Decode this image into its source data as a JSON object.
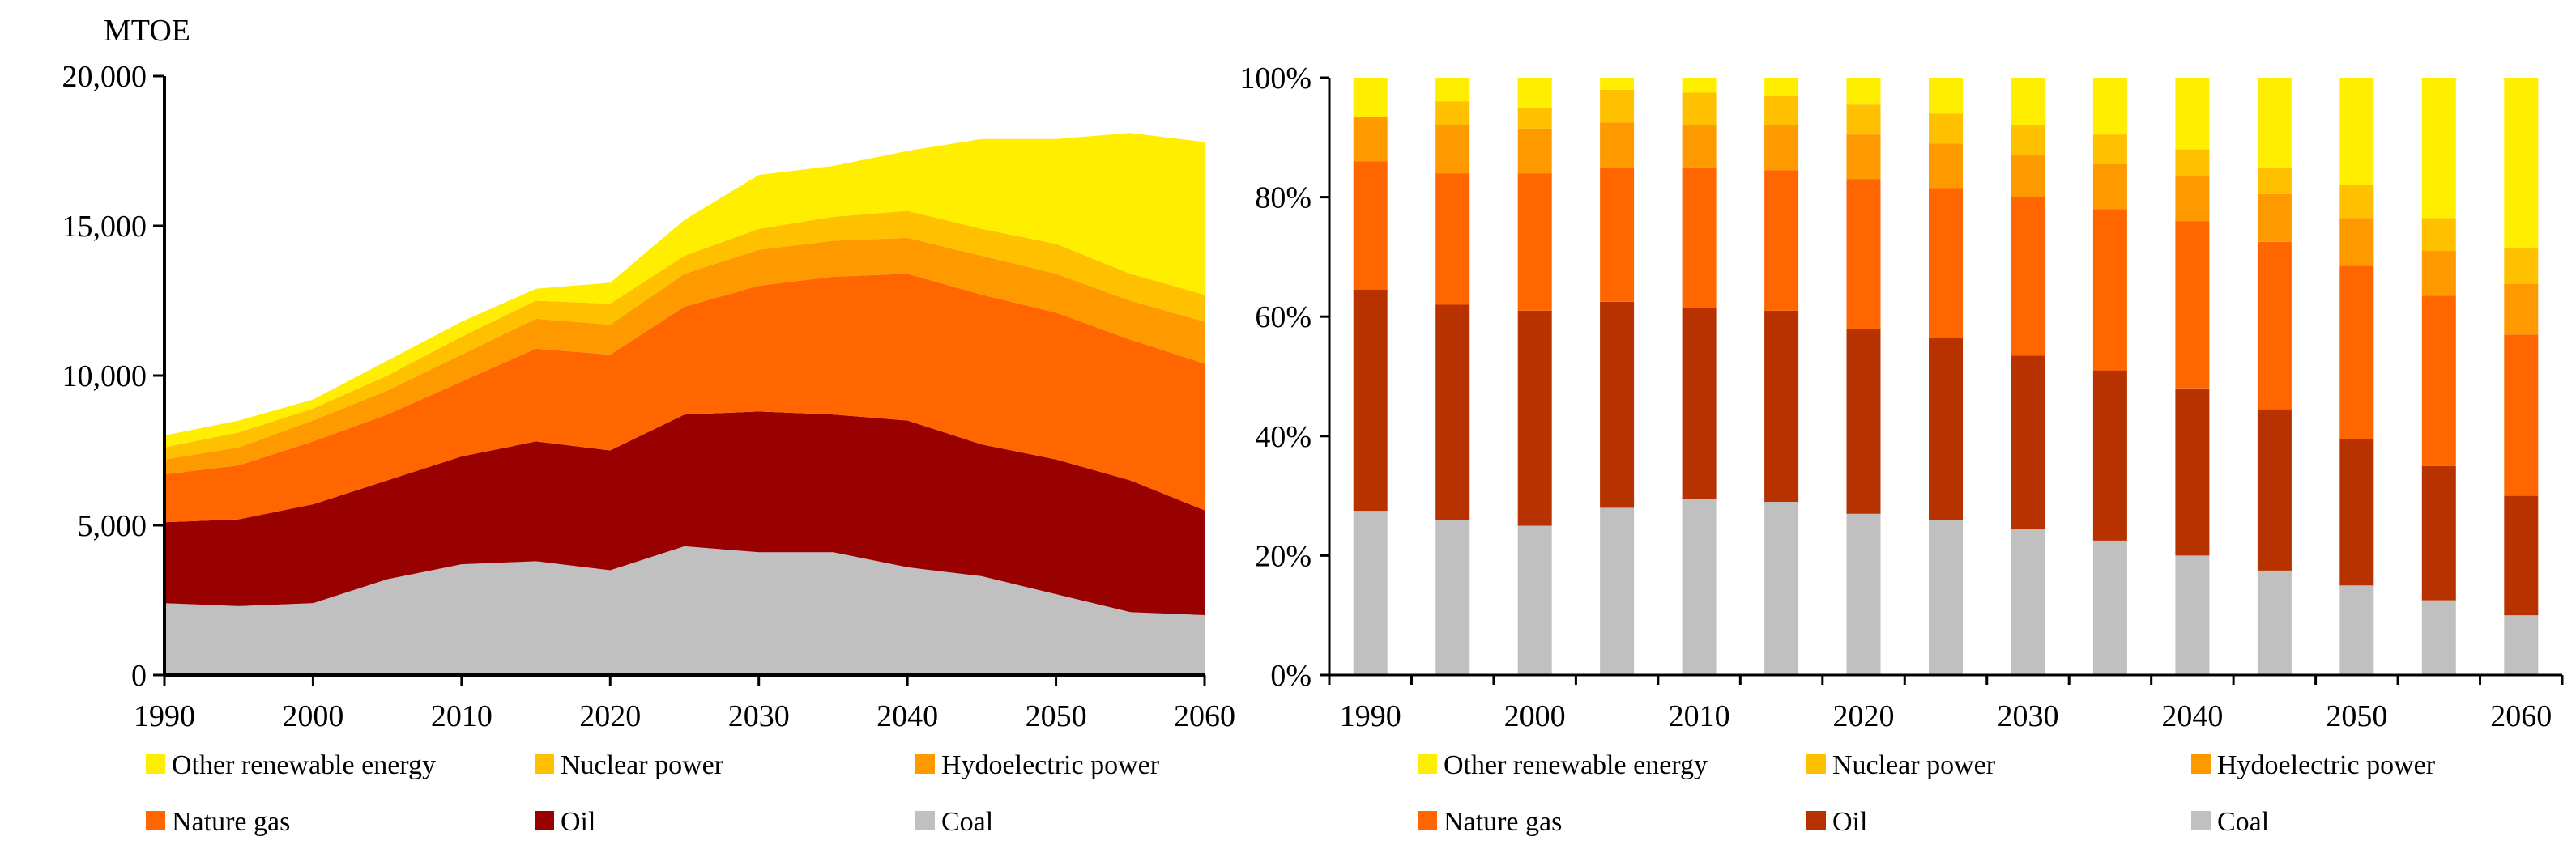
{
  "chart_data": [
    {
      "type": "area",
      "stacked": true,
      "unit_label": "MTOE",
      "x": [
        1990,
        1995,
        2000,
        2005,
        2010,
        2015,
        2020,
        2025,
        2030,
        2035,
        2040,
        2045,
        2050,
        2055,
        2060
      ],
      "x_ticks": [
        "1990",
        "2000",
        "2010",
        "2020",
        "2030",
        "2040",
        "2050",
        "2060"
      ],
      "x_tick_values": [
        1990,
        2000,
        2010,
        2020,
        2030,
        2040,
        2050,
        2060
      ],
      "xlim": [
        1990,
        2060
      ],
      "ylim": [
        0,
        20000
      ],
      "y_ticks": [
        "0",
        "5,000",
        "10,000",
        "15,000",
        "20,000"
      ],
      "y_tick_values": [
        0,
        5000,
        10000,
        15000,
        20000
      ],
      "series": [
        {
          "name": "Coal",
          "color": "#C0C0C0",
          "values": [
            2400,
            2300,
            2400,
            3200,
            3700,
            3800,
            3500,
            4300,
            4100,
            4100,
            3600,
            3300,
            2700,
            2100,
            2000
          ]
        },
        {
          "name": "Oil",
          "color": "#990000",
          "values": [
            2700,
            2900,
            3300,
            3300,
            3600,
            4000,
            4000,
            4400,
            4700,
            4600,
            4900,
            4400,
            4500,
            4400,
            3500
          ]
        },
        {
          "name": "Nature gas",
          "color": "#FF6600",
          "values": [
            1600,
            1800,
            2100,
            2200,
            2500,
            3100,
            3200,
            3600,
            4200,
            4600,
            4900,
            5000,
            4900,
            4700,
            4900
          ]
        },
        {
          "name": "Hydoelectric power",
          "color": "#FF9900",
          "values": [
            500,
            600,
            700,
            800,
            900,
            1000,
            1000,
            1100,
            1200,
            1200,
            1200,
            1300,
            1300,
            1300,
            1400
          ]
        },
        {
          "name": "Nuclear power",
          "color": "#FFC000",
          "values": [
            400,
            500,
            400,
            500,
            600,
            600,
            700,
            600,
            700,
            800,
            900,
            900,
            1000,
            900,
            900
          ]
        },
        {
          "name": "Other renewable energy",
          "color": "#FFEE00",
          "values": [
            400,
            400,
            300,
            500,
            500,
            400,
            700,
            1200,
            1800,
            1700,
            2000,
            3000,
            3500,
            4700,
            5100
          ]
        }
      ],
      "legend": [
        "Other renewable energy",
        "Nuclear power",
        "Hydoelectric power",
        "Nature gas",
        "Oil",
        "Coal"
      ]
    },
    {
      "type": "bar",
      "stacked": true,
      "percent": true,
      "categories": [
        "1990",
        "1995",
        "2000",
        "2005",
        "2010",
        "2015",
        "2020",
        "2025",
        "2030",
        "2035",
        "2040",
        "2045",
        "2050",
        "2055",
        "2060"
      ],
      "x_ticks": [
        "1990",
        "2000",
        "2010",
        "2020",
        "2030",
        "2040",
        "2050",
        "2060"
      ],
      "ylim": [
        0,
        100
      ],
      "y_ticks": [
        "0%",
        "20%",
        "40%",
        "60%",
        "80%",
        "100%"
      ],
      "y_tick_values": [
        0,
        20,
        40,
        60,
        80,
        100
      ],
      "series": [
        {
          "name": "Coal",
          "color": "#C0C0C0",
          "values": [
            27.5,
            26,
            25,
            28,
            29.5,
            29,
            27,
            26,
            24.5,
            22.5,
            20,
            17.5,
            15,
            12.5,
            10
          ]
        },
        {
          "name": "Oil",
          "color": "#B83200",
          "values": [
            37,
            36,
            36,
            34.5,
            32,
            32,
            31,
            30.5,
            29,
            28.5,
            28,
            27,
            24.5,
            22.5,
            20
          ]
        },
        {
          "name": "Nature gas",
          "color": "#FF6600",
          "values": [
            21.5,
            22,
            23,
            22.5,
            23.5,
            23.5,
            25,
            25,
            26.5,
            27,
            28,
            28,
            29,
            28.5,
            27
          ]
        },
        {
          "name": "Hydoelectric power",
          "color": "#FF9900",
          "values": [
            7.5,
            8,
            7.5,
            7.5,
            7,
            7.5,
            7.5,
            7.5,
            7,
            7.5,
            7.5,
            8,
            8,
            7.5,
            8.5
          ]
        },
        {
          "name": "Nuclear power",
          "color": "#FFC000",
          "values": [
            0,
            4,
            3.5,
            5.5,
            5.5,
            5,
            5,
            5,
            5,
            5,
            4.5,
            4.5,
            5.5,
            5.5,
            6
          ]
        },
        {
          "name": "Other renewable energy",
          "color": "#FFEE00",
          "values": [
            6.5,
            4,
            5,
            2,
            2.5,
            3,
            4.5,
            6,
            8,
            9.5,
            12,
            15,
            18,
            23.5,
            28.5
          ]
        }
      ],
      "legend": [
        "Other renewable energy",
        "Nuclear power",
        "Hydoelectric power",
        "Nature gas",
        "Oil",
        "Coal"
      ]
    }
  ]
}
